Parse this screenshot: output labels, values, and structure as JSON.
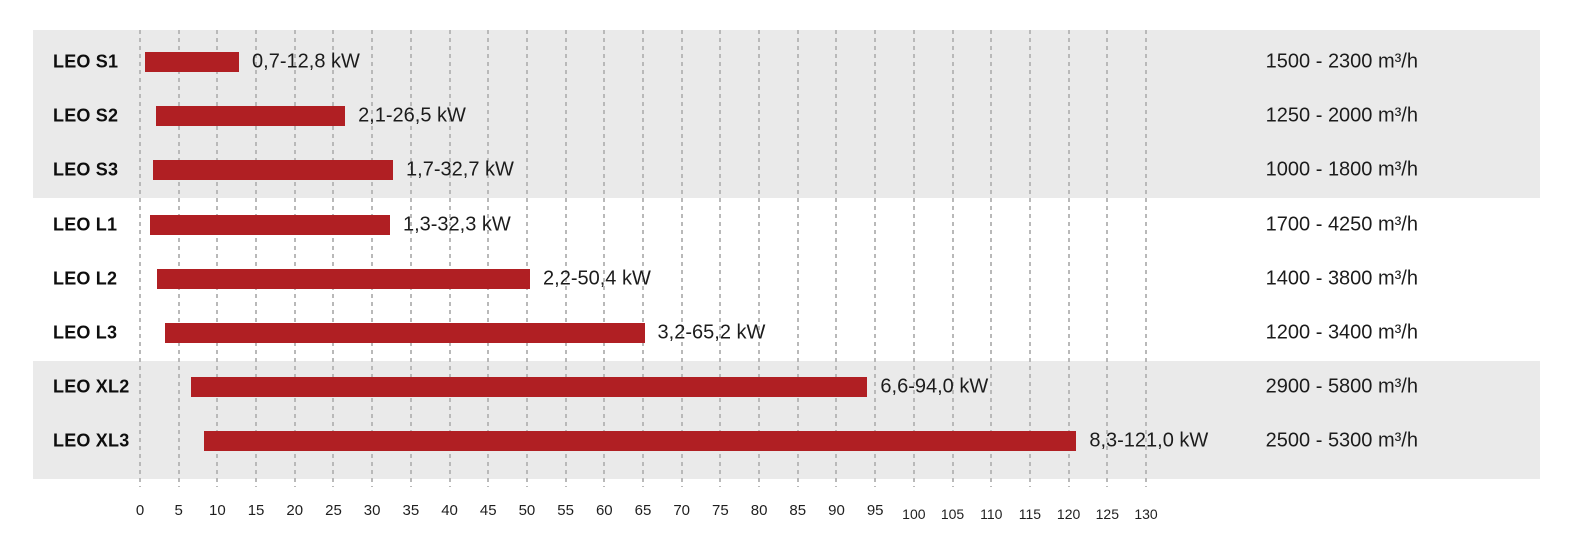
{
  "chart_data": {
    "type": "bar",
    "orientation": "horizontal",
    "title": "",
    "xlabel": "",
    "ylabel": "",
    "grid": "dashed-vertical",
    "legend": "none",
    "units": {
      "power": "kW",
      "airflow": "m³/h"
    },
    "colors": {
      "bar": "#b01f23",
      "band_shaded": "#eaeaea",
      "band_plain": "#ffffff",
      "gridline": "#b9b9b9",
      "text": "#1c1c1c"
    },
    "axis": {
      "min": 0,
      "max": 130,
      "step": 5,
      "tick_labels": [
        "0",
        "5",
        "10",
        "15",
        "20",
        "25",
        "30",
        "35",
        "40",
        "45",
        "50",
        "55",
        "60",
        "65",
        "70",
        "75",
        "80",
        "85",
        "90",
        "95",
        "100",
        "105",
        "110",
        "115",
        "120",
        "125",
        "130"
      ]
    },
    "groups": [
      {
        "name": "S",
        "shaded": true
      },
      {
        "name": "L",
        "shaded": false
      },
      {
        "name": "XL",
        "shaded": true
      }
    ],
    "rows": [
      {
        "model": "LEO S1",
        "group": "S",
        "kw_min": 0.7,
        "kw_max": 12.8,
        "kw_label": "0,7-12,8 kW",
        "airflow_label": "1500 - 2300 m³/h"
      },
      {
        "model": "LEO S2",
        "group": "S",
        "kw_min": 2.1,
        "kw_max": 26.5,
        "kw_label": "2,1-26,5 kW",
        "airflow_label": "1250 - 2000 m³/h"
      },
      {
        "model": "LEO S3",
        "group": "S",
        "kw_min": 1.7,
        "kw_max": 32.7,
        "kw_label": "1,7-32,7 kW",
        "airflow_label": "1000 - 1800 m³/h"
      },
      {
        "model": "LEO L1",
        "group": "L",
        "kw_min": 1.3,
        "kw_max": 32.3,
        "kw_label": "1,3-32,3 kW",
        "airflow_label": "1700 - 4250 m³/h"
      },
      {
        "model": "LEO L2",
        "group": "L",
        "kw_min": 2.2,
        "kw_max": 50.4,
        "kw_label": "2,2-50,4 kW",
        "airflow_label": "1400 - 3800 m³/h"
      },
      {
        "model": "LEO L3",
        "group": "L",
        "kw_min": 3.2,
        "kw_max": 65.2,
        "kw_label": "3,2-65,2 kW",
        "airflow_label": "1200 - 3400 m³/h"
      },
      {
        "model": "LEO XL2",
        "group": "XL",
        "kw_min": 6.6,
        "kw_max": 94.0,
        "kw_label": "6,6-94,0 kW",
        "airflow_label": "2900 - 5800 m³/h"
      },
      {
        "model": "LEO XL3",
        "group": "XL",
        "kw_min": 8.3,
        "kw_max": 121.0,
        "kw_label": "8,3-121,0 kW",
        "airflow_label": "2500 - 5300 m³/h"
      }
    ]
  }
}
